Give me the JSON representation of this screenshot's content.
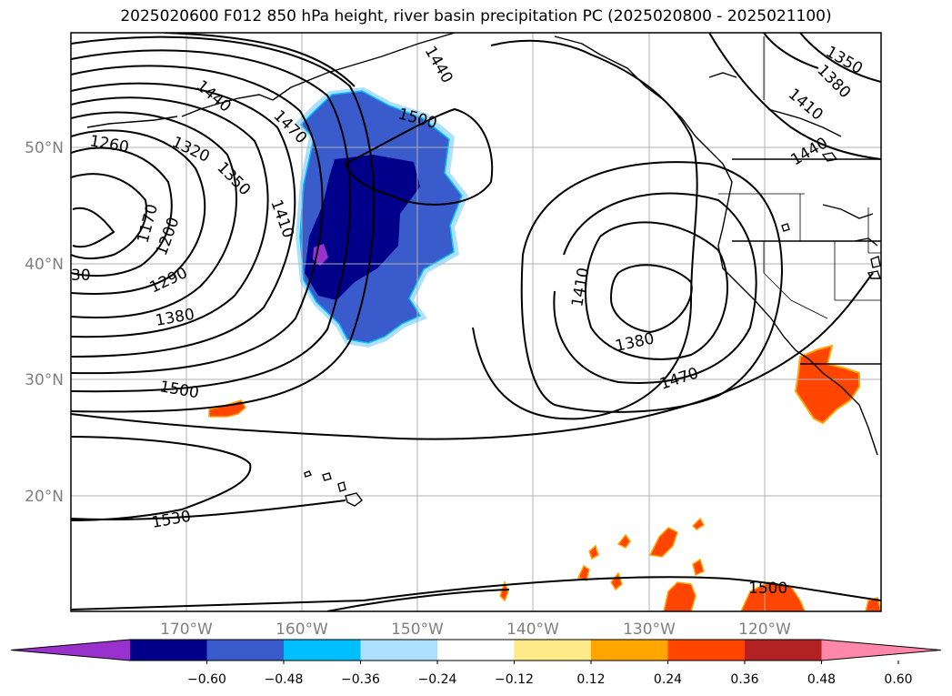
{
  "title": "2025020600 F012 850 hPa height, river basin precipitation PC (2025020800 - 2025021100)",
  "map": {
    "lat_ticks": [
      "50°N",
      "40°N",
      "30°N",
      "20°N"
    ],
    "lon_ticks": [
      "170°W",
      "160°W",
      "150°W",
      "140°W",
      "130°W",
      "120°W"
    ],
    "axis_label_color": "#808080",
    "contour_labels": [
      {
        "text": "1260"
      },
      {
        "text": "1320"
      },
      {
        "text": "1350"
      },
      {
        "text": "1410"
      },
      {
        "text": "1440"
      },
      {
        "text": "1470"
      },
      {
        "text": "1440"
      },
      {
        "text": "1500"
      },
      {
        "text": "1170"
      },
      {
        "text": "1200"
      },
      {
        "text": "1290"
      },
      {
        "text": "1380"
      },
      {
        "text": "30"
      },
      {
        "text": "1500"
      },
      {
        "text": "1530"
      },
      {
        "text": "1410"
      },
      {
        "text": "1380"
      },
      {
        "text": "1470"
      },
      {
        "text": "1350"
      },
      {
        "text": "1380"
      },
      {
        "text": "1410"
      },
      {
        "text": "1440"
      },
      {
        "text": "1500"
      }
    ]
  },
  "colorbar": {
    "ticks": [
      "−0.60",
      "−0.48",
      "−0.36",
      "−0.24",
      "−0.12",
      "0.12",
      "0.24",
      "0.36",
      "0.48",
      "0.60"
    ],
    "colors": [
      "#9932CC",
      "#00008B",
      "#3A5BCC",
      "#00BFFF",
      "#ADE0FF",
      "#FFFFFF",
      "#FFEA8A",
      "#FFA500",
      "#FF4500",
      "#B22222",
      "#FF88AA"
    ]
  }
}
